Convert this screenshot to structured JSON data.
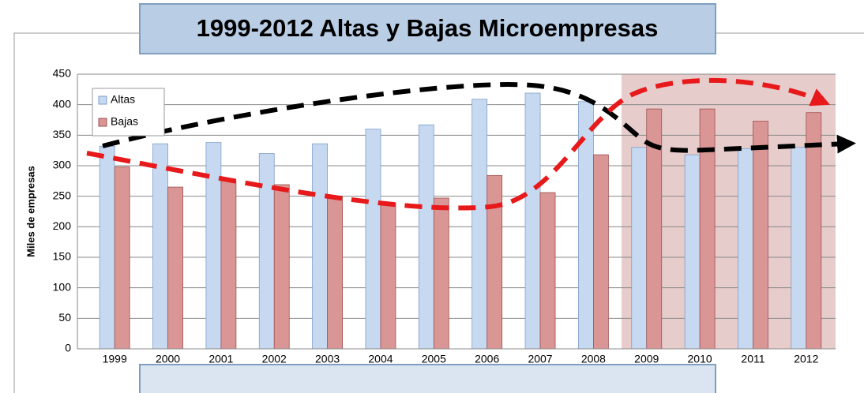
{
  "chart_data": {
    "type": "bar",
    "title": "1999-2012 Altas y Bajas Microempresas",
    "y_label": "Miles de empresas",
    "categories": [
      "1999",
      "2000",
      "2001",
      "2002",
      "2003",
      "2004",
      "2005",
      "2006",
      "2007",
      "2008",
      "2009",
      "2010",
      "2011",
      "2012"
    ],
    "series": [
      {
        "name": "Altas",
        "color": "#c6d9f1",
        "values": [
          332,
          336,
          338,
          320,
          336,
          360,
          367,
          409,
          419,
          405,
          330,
          318,
          328,
          330
        ]
      },
      {
        "name": "Bajas",
        "color": "#d99694",
        "values": [
          298,
          265,
          275,
          269,
          250,
          239,
          247,
          284,
          256,
          318,
          393,
          393,
          373,
          387
        ]
      }
    ],
    "ylim": [
      0,
      450
    ],
    "yticks": [
      0,
      50,
      100,
      150,
      200,
      250,
      300,
      350,
      400,
      450
    ],
    "grid": true,
    "legend": "upper left"
  }
}
